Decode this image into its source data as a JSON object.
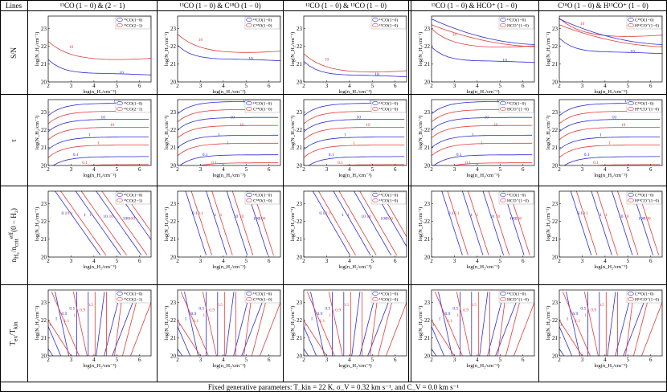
{
  "table": {
    "lines_header": "Lines",
    "columns": [
      {
        "title": "¹³CO (1 − 0) & (2 − 1)",
        "legend": [
          "¹³CO(1−0)",
          "¹³CO(2−1)"
        ]
      },
      {
        "title": "¹³CO (1 − 0) & C¹⁸O (1 − 0)",
        "legend": [
          "¹³CO(1−0)",
          "C¹⁸O(1−0)"
        ]
      },
      {
        "title": "¹²CO (1 − 0) & ¹³CO (1 − 0)",
        "legend": [
          "¹²CO(1−0)",
          "¹³CO(1−0)"
        ]
      },
      {
        "title": "¹³CO (1 − 0) & HCO⁺ (1 − 0)",
        "legend": [
          "¹³CO(1−0)",
          "HCO⁺(1−0)"
        ]
      },
      {
        "title": "C¹⁸O (1 − 0) & H¹³CO⁺ (1 − 0)",
        "legend": [
          "C¹⁸O(1−0)",
          "H¹³CO⁺(1−0)"
        ]
      }
    ],
    "rows": [
      {
        "label": "S/N",
        "contours": [
          "10",
          "10"
        ]
      },
      {
        "label": "τ",
        "contours": [
          "0.1",
          "1",
          "10",
          "100"
        ]
      },
      {
        "label": "n_H₂ / n_crit^eff (0 − H₂)",
        "contours": [
          "0.1",
          "1",
          "10",
          "100"
        ]
      },
      {
        "label": "T_ex / T_kin",
        "contours": [
          "0.5",
          "0.9",
          "1",
          "1.1"
        ]
      }
    ],
    "footer": "Fixed generative parameters: T_kin = 22 K, σ_V = 0.32 km s⁻¹, and C_V = 0.0 km s⁻¹"
  },
  "axes": {
    "xlabel": "log(n_H₂/cm⁻³)",
    "ylabel": "log(N_H₂/cm⁻²)",
    "xticks": [
      "2",
      "3",
      "4",
      "5",
      "6"
    ],
    "yticks": [
      "20",
      "21",
      "22",
      "23"
    ],
    "xlim": [
      2,
      6.5
    ],
    "ylim": [
      20,
      23.7
    ]
  },
  "colors": {
    "line1": "#2b2bd8",
    "line2": "#e23a3a"
  }
}
